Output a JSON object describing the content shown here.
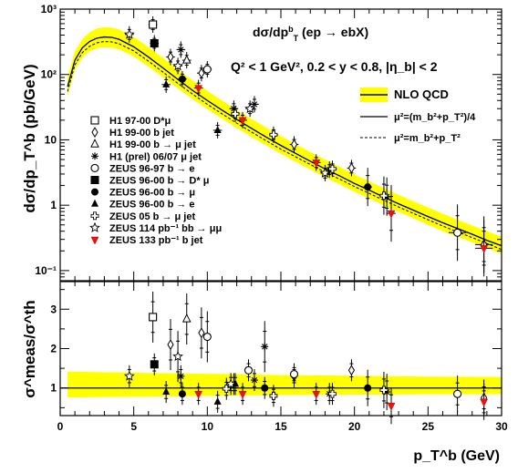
{
  "chart_data": [
    {
      "type": "scatter",
      "panel": "cross-section",
      "title_html": "dσ/dp<tspan baseline-shift='super' font-size='9'>b</tspan><tspan baseline-shift='sub' font-size='9'>T</tspan> (ep → ebX)",
      "title": "dσ/dp_T^b (ep → ebX)",
      "kinematics": "Q² < 1 GeV², 0.2 < y < 0.8, |η_b| < 2",
      "ylabel": "dσ/dp_T^b (pb/GeV)",
      "xlim": [
        0,
        30
      ],
      "ylim": [
        0.07,
        1000
      ],
      "yscale": "log",
      "x_ticks": [
        0,
        5,
        10,
        15,
        20,
        25,
        30
      ],
      "y_ticks": [
        {
          "v": 0.1,
          "label": "10⁻¹"
        },
        {
          "v": 1,
          "label": "1"
        },
        {
          "v": 10,
          "label": "10"
        },
        {
          "v": 100,
          "label": "10²"
        },
        {
          "v": 1000,
          "label": "10³"
        }
      ],
      "theory": {
        "band_label": "NLO QCD",
        "solid_label": "μ²=(m_b²+p_T²)/4",
        "dashed_label": "μ²=m_b²+p_T²",
        "band_color": "#ffff00",
        "x": [
          0.5,
          1,
          1.5,
          2,
          2.5,
          3,
          3.5,
          4,
          5,
          6,
          7,
          8,
          9,
          10,
          11,
          12,
          13,
          14,
          15,
          16,
          17,
          18,
          19,
          20,
          21,
          22,
          23,
          24,
          25,
          26,
          27,
          28,
          29,
          30
        ],
        "central": [
          65,
          165,
          255,
          320,
          360,
          375,
          370,
          345,
          265,
          185,
          125,
          84,
          57,
          40,
          28.5,
          20.5,
          15,
          11,
          8.2,
          6.2,
          4.7,
          3.6,
          2.8,
          2.15,
          1.7,
          1.33,
          1.05,
          0.84,
          0.67,
          0.54,
          0.44,
          0.36,
          0.29,
          0.24
        ],
        "dashed": [
          55,
          140,
          215,
          270,
          305,
          320,
          315,
          295,
          230,
          160,
          108,
          73,
          50,
          35,
          25,
          18,
          13.2,
          9.7,
          7.2,
          5.5,
          4.2,
          3.2,
          2.5,
          1.93,
          1.52,
          1.19,
          0.94,
          0.75,
          0.6,
          0.48,
          0.39,
          0.32,
          0.26,
          0.21
        ],
        "band_up": [
          90,
          225,
          345,
          440,
          505,
          530,
          520,
          490,
          375,
          262,
          178,
          119,
          81,
          56,
          40,
          28.5,
          21,
          15.4,
          11.4,
          8.6,
          6.5,
          5.0,
          3.85,
          2.95,
          2.33,
          1.83,
          1.44,
          1.15,
          0.92,
          0.74,
          0.6,
          0.49,
          0.4,
          0.33
        ],
        "band_low": [
          46,
          118,
          180,
          225,
          252,
          262,
          258,
          242,
          188,
          132,
          90,
          61,
          42,
          29.5,
          21,
          15.2,
          11.1,
          8.2,
          6.1,
          4.6,
          3.5,
          2.68,
          2.08,
          1.6,
          1.27,
          1.0,
          0.79,
          0.63,
          0.5,
          0.4,
          0.33,
          0.27,
          0.22,
          0.18
        ]
      },
      "series": [
        {
          "name": "H1 97-00 D*μ",
          "marker": "open-square",
          "x": [
            6.3
          ],
          "y": [
            580
          ],
          "err": [
            0.3
          ]
        },
        {
          "name": "H1 99-00 b jet",
          "marker": "open-diamond",
          "x": [
            7.5,
            9.6,
            15.9,
            19.8,
            28.8
          ],
          "y": [
            185,
            105,
            8.5,
            3.7,
            0.25
          ],
          "err": [
            0.3,
            0.3,
            0.3,
            0.3,
            0.6
          ]
        },
        {
          "name": "H1 99-00 b → μ jet",
          "marker": "open-triangle",
          "x": [
            8.6
          ],
          "y": [
            165
          ],
          "err": [
            0.3
          ]
        },
        {
          "name": "H1 (prel) 06/07 μ jet",
          "marker": "asterisk",
          "x": [
            8.2,
            11.8,
            13.2,
            18.3,
            22.2
          ],
          "y": [
            240,
            30,
            35,
            3.5,
            1.35
          ],
          "err": [
            0.3,
            0.3,
            0.3,
            0.3,
            0.3
          ]
        },
        {
          "name": "ZEUS 96-97 b → e",
          "marker": "open-circle",
          "x": [
            10.0,
            27.0
          ],
          "y": [
            120,
            0.38
          ],
          "err": [
            0.3,
            0.6
          ]
        },
        {
          "name": "ZEUS 96-00 b → D* μ",
          "marker": "filled-square",
          "x": [
            6.4
          ],
          "y": [
            300
          ],
          "err": [
            0.3
          ]
        },
        {
          "name": "ZEUS 96-00 b → μ",
          "marker": "filled-circle",
          "x": [
            8.3,
            20.9
          ],
          "y": [
            85,
            1.9
          ],
          "err": [
            0.3,
            0.3
          ]
        },
        {
          "name": "ZEUS 96-00 b → e",
          "marker": "filled-triangle",
          "x": [
            7.2,
            10.7
          ],
          "y": [
            70,
            14
          ],
          "err": [
            0.3,
            0.3
          ]
        },
        {
          "name": "ZEUS 05 b → μ jet",
          "marker": "open-cross",
          "x": [
            11.9,
            14.5,
            18.5,
            22.0
          ],
          "y": [
            25,
            12,
            3.6,
            1.4
          ],
          "err": [
            0.3,
            0.3,
            0.3,
            0.3
          ]
        },
        {
          "name": "ZEUS 114 pb⁻¹ bb → μμ",
          "marker": "open-star",
          "x": [
            4.7,
            8.0,
            12.9,
            18.0
          ],
          "y": [
            410,
            135,
            30,
            3.1
          ],
          "err": [
            0.3,
            0.3,
            0.3,
            0.3
          ]
        },
        {
          "name": "ZEUS 133 pb⁻¹ b jet",
          "marker": "red-triangle-down",
          "x": [
            9.4,
            12.4,
            17.4,
            22.5,
            28.8
          ],
          "y": [
            62,
            20,
            4.5,
            0.75,
            0.22
          ],
          "err": [
            0.3,
            0.3,
            0.3,
            0.3,
            0.6
          ]
        }
      ],
      "legend_placement": "left-lower"
    },
    {
      "type": "scatter",
      "panel": "ratio",
      "ylabel": "σ^meas/σ^th",
      "xlabel": "p_T^b (GeV)",
      "xlim": [
        0,
        30
      ],
      "ylim": [
        0.3,
        3.7
      ],
      "x_ticks": [
        0,
        5,
        10,
        15,
        20,
        25,
        30
      ],
      "y_ticks": [
        1,
        2,
        3
      ],
      "band_low": 0.78,
      "band_up": 1.36,
      "series": [
        {
          "marker": "open-square",
          "x": [
            6.3
          ],
          "y": [
            2.8
          ]
        },
        {
          "marker": "open-diamond",
          "x": [
            7.5,
            9.6,
            15.9,
            19.8,
            28.8
          ],
          "y": [
            2.1,
            2.4,
            1.3,
            1.45,
            0.75
          ]
        },
        {
          "marker": "open-triangle",
          "x": [
            8.6
          ],
          "y": [
            2.75
          ]
        },
        {
          "marker": "asterisk",
          "x": [
            8.2,
            11.8,
            13.2,
            13.9,
            18.3,
            22.2
          ],
          "y": [
            1.3,
            1.1,
            1.2,
            2.05,
            0.85,
            0.9
          ]
        },
        {
          "marker": "open-circle",
          "x": [
            10.0,
            12.8,
            15.9,
            27.0
          ],
          "y": [
            2.3,
            1.45,
            1.35,
            0.85
          ]
        },
        {
          "marker": "filled-square",
          "x": [
            6.4
          ],
          "y": [
            1.6
          ]
        },
        {
          "marker": "filled-circle",
          "x": [
            8.3,
            13.9,
            20.9
          ],
          "y": [
            0.85,
            1.0,
            1.0
          ]
        },
        {
          "marker": "filled-triangle",
          "x": [
            7.2,
            10.7,
            11.9
          ],
          "y": [
            0.9,
            0.65,
            1.1
          ]
        },
        {
          "marker": "open-cross",
          "x": [
            11.3,
            14.5,
            18.5,
            22.0
          ],
          "y": [
            0.98,
            0.8,
            0.85,
            0.95
          ]
        },
        {
          "marker": "open-star",
          "x": [
            4.7,
            8.0,
            11.6
          ],
          "y": [
            1.3,
            1.8,
            1.1
          ]
        },
        {
          "marker": "red-triangle-down",
          "x": [
            9.4,
            12.4,
            17.4,
            22.5,
            28.8
          ],
          "y": [
            0.85,
            0.85,
            0.85,
            0.55,
            0.65
          ]
        }
      ]
    }
  ]
}
